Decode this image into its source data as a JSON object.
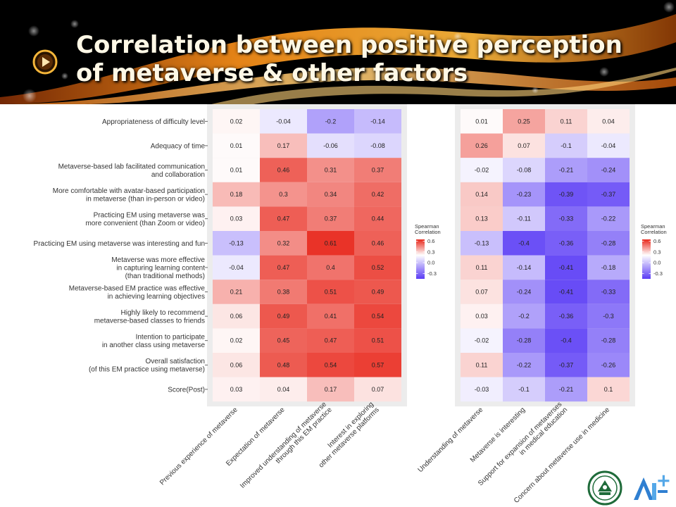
{
  "slide": {
    "title_line1": "Correlation between positive perception",
    "title_line2": "of metaverse & other factors",
    "banner_colors": {
      "background": "#000000",
      "swoosh": "#f29a1c",
      "swoosh_dark": "#c25a0a"
    },
    "play_icon": "play-button-icon"
  },
  "chart_data": [
    {
      "type": "heatmap",
      "rows": [
        [
          "Appropriateness of difficulty level"
        ],
        [
          "Adequacy of time"
        ],
        [
          "Metaverse-based lab facilitated communication",
          "and collaboration"
        ],
        [
          "More comfortable with avatar-based participation",
          "in metaverse (than in-person or video)"
        ],
        [
          "Practicing EM using metaverse was",
          "more convenient (than Zoom or video)"
        ],
        [
          "Practicing EM using metaverse was interesting and fun"
        ],
        [
          "Metaverse was more effective",
          "in capturing learning content",
          "(than traditional methods)"
        ],
        [
          "Metaverse-based EM practice was effective",
          "in achieving learning objectives"
        ],
        [
          "Highly likely to recommend",
          "metaverse-based classes to friends"
        ],
        [
          "Intention to participate",
          "in another class using metaverse"
        ],
        [
          "Overall satisfaction",
          "(of this EM practice using metaverse)"
        ],
        [
          "Score(Post)"
        ]
      ],
      "columns": [
        [
          "Previous experience of metaverse"
        ],
        [
          "Expectation of metaverse"
        ],
        [
          "Improved understanding of metaverse",
          "through this EM practice"
        ],
        [
          "Interest in exploring",
          "other metaverse platforms"
        ]
      ],
      "values": [
        [
          0.02,
          -0.04,
          -0.2,
          -0.14
        ],
        [
          0.01,
          0.17,
          -0.06,
          -0.08
        ],
        [
          0.01,
          0.46,
          0.31,
          0.37
        ],
        [
          0.18,
          0.3,
          0.34,
          0.42
        ],
        [
          0.03,
          0.47,
          0.37,
          0.44
        ],
        [
          -0.13,
          0.32,
          0.61,
          0.46
        ],
        [
          -0.04,
          0.47,
          0.4,
          0.52
        ],
        [
          0.21,
          0.38,
          0.51,
          0.49
        ],
        [
          0.06,
          0.49,
          0.41,
          0.54
        ],
        [
          0.02,
          0.45,
          0.47,
          0.51
        ],
        [
          0.06,
          0.48,
          0.54,
          0.57
        ],
        [
          0.03,
          0.04,
          0.17,
          0.07
        ]
      ],
      "legend": {
        "title": [
          "Spearman",
          "Correlation"
        ],
        "ticks": [
          "0.6",
          "0.3",
          "0.0",
          "-0.3"
        ],
        "tick_values": [
          0.6,
          0.3,
          0.0,
          -0.3
        ],
        "placement": "right"
      },
      "color_scale": {
        "low": "#5b3cf5",
        "mid": "#ffffff",
        "high": "#e8271b",
        "range": [
          -0.45,
          0.65
        ]
      },
      "grid": true
    },
    {
      "type": "heatmap",
      "rows_shared_with_first": true,
      "columns": [
        [
          "Understanding of metaverse"
        ],
        [
          "Metaverse is interesting"
        ],
        [
          "Support for expansion of metaverses",
          "in medical education"
        ],
        [
          "Concern about metaverse use in medicine"
        ]
      ],
      "values": [
        [
          0.01,
          0.25,
          0.11,
          0.04
        ],
        [
          0.26,
          0.07,
          -0.1,
          -0.04
        ],
        [
          -0.02,
          -0.08,
          -0.21,
          -0.24
        ],
        [
          0.14,
          -0.23,
          -0.39,
          -0.37
        ],
        [
          0.13,
          -0.11,
          -0.33,
          -0.22
        ],
        [
          -0.13,
          -0.4,
          -0.36,
          -0.28
        ],
        [
          0.11,
          -0.14,
          -0.41,
          -0.18
        ],
        [
          0.07,
          -0.24,
          -0.41,
          -0.33
        ],
        [
          0.03,
          -0.2,
          -0.36,
          -0.3
        ],
        [
          -0.02,
          -0.28,
          -0.4,
          -0.28
        ],
        [
          0.11,
          -0.22,
          -0.37,
          -0.26
        ],
        [
          -0.03,
          -0.1,
          -0.21,
          0.1
        ]
      ],
      "legend": {
        "title": [
          "Spearman",
          "Correlation"
        ],
        "ticks": [
          "0.6",
          "0.3",
          "0.0",
          "-0.3"
        ],
        "tick_values": [
          0.6,
          0.3,
          0.0,
          -0.3
        ],
        "placement": "right"
      },
      "color_scale": {
        "low": "#5b3cf5",
        "mid": "#ffffff",
        "high": "#e8271b",
        "range": [
          -0.45,
          0.65
        ]
      },
      "grid": true
    }
  ],
  "footer": {
    "logo_seal": "university-seal-logo",
    "logo_ai": "ai-plus-logo"
  }
}
